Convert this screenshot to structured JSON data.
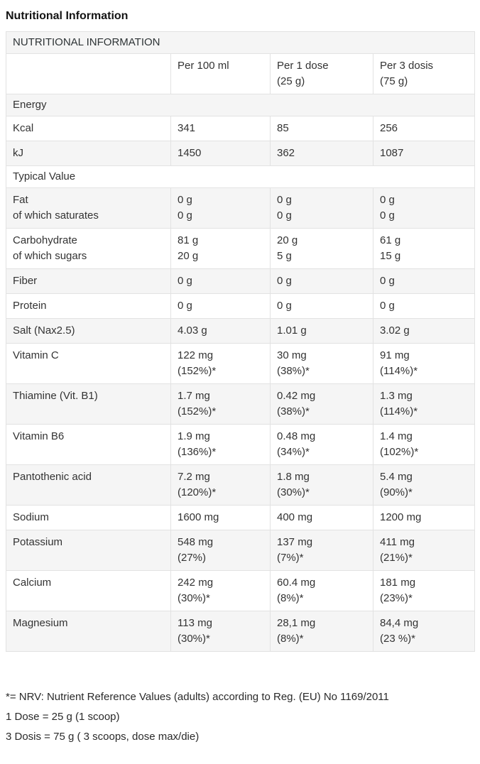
{
  "page_title": "Nutritional Information",
  "table": {
    "rows": [
      {
        "type": "title",
        "label": "NUTRITIONAL INFORMATION"
      },
      {
        "type": "header",
        "cells": [
          "",
          "Per 100 ml",
          "Per 1 dose\n(25 g)",
          "Per 3 dosis\n(75 g)"
        ]
      },
      {
        "type": "section",
        "label": "Energy"
      },
      {
        "type": "data",
        "label": "Kcal",
        "values": [
          "341",
          "85",
          "256"
        ]
      },
      {
        "type": "data",
        "label": "kJ",
        "values": [
          "1450",
          "362",
          "1087"
        ]
      },
      {
        "type": "section",
        "label": "Typical Value"
      },
      {
        "type": "data",
        "label": "Fat\nof which saturates",
        "values": [
          "0 g\n0 g",
          "0 g\n0 g",
          "0 g\n0 g"
        ]
      },
      {
        "type": "data",
        "label": "Carbohydrate\nof which sugars",
        "values": [
          "81 g\n20 g",
          "20 g\n5 g",
          "61 g\n15 g"
        ]
      },
      {
        "type": "data",
        "label": "Fiber",
        "values": [
          "0 g",
          "0 g",
          "0 g"
        ]
      },
      {
        "type": "data",
        "label": "Protein",
        "values": [
          "0 g",
          "0 g",
          "0 g"
        ]
      },
      {
        "type": "data",
        "label": "Salt (Nax2.5)",
        "values": [
          "4.03 g",
          "1.01 g",
          "3.02 g"
        ]
      },
      {
        "type": "data",
        "label": "Vitamin C",
        "values": [
          "122 mg\n(152%)*",
          "30 mg\n(38%)*",
          "91 mg\n(114%)*"
        ]
      },
      {
        "type": "data",
        "label": "Thiamine (Vit. B1)",
        "values": [
          "1.7 mg\n(152%)*",
          "0.42 mg\n(38%)*",
          "1.3 mg\n(114%)*"
        ]
      },
      {
        "type": "data",
        "label": "Vitamin B6",
        "values": [
          "1.9 mg\n(136%)*",
          "0.48 mg\n(34%)*",
          "1.4 mg\n(102%)*"
        ]
      },
      {
        "type": "data",
        "label": "Pantothenic acid",
        "values": [
          "7.2 mg\n(120%)*",
          "1.8 mg\n(30%)*",
          "5.4 mg\n(90%)*"
        ]
      },
      {
        "type": "data",
        "label": "Sodium",
        "values": [
          "1600 mg",
          "400 mg",
          "1200 mg"
        ]
      },
      {
        "type": "data",
        "label": "Potassium",
        "values": [
          "548 mg\n(27%)",
          "137 mg\n(7%)*",
          "411 mg\n(21%)*"
        ]
      },
      {
        "type": "data",
        "label": "Calcium",
        "values": [
          "242 mg\n(30%)*",
          "60.4 mg\n(8%)*",
          "181 mg\n(23%)*"
        ]
      },
      {
        "type": "data",
        "label": "Magnesium",
        "values": [
          "113 mg\n(30%)*",
          "28,1 mg\n(8%)*",
          "84,4 mg\n(23 %)*"
        ]
      }
    ]
  },
  "footnotes": [
    "*= NRV: Nutrient Reference Values (adults) according to Reg. (EU) No 1169/2011",
    "1 Dose = 25 g (1 scoop)",
    "3 Dosis = 75 g ( 3 scoops, dose max/die)"
  ]
}
